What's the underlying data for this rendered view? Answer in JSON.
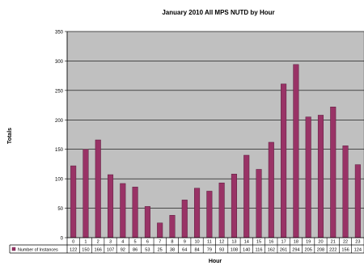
{
  "chart_data": {
    "type": "bar",
    "title": "January 2010 All MPS NUTD by Hour",
    "xlabel": "Hour",
    "ylabel": "Totals",
    "ylim": [
      0,
      350
    ],
    "yticks": [
      0,
      50,
      100,
      150,
      200,
      250,
      300,
      350
    ],
    "grid": true,
    "legend_position": "bottom-table",
    "categories": [
      "0",
      "1",
      "2",
      "3",
      "4",
      "5",
      "6",
      "7",
      "8",
      "9",
      "10",
      "11",
      "12",
      "13",
      "14",
      "15",
      "16",
      "17",
      "18",
      "19",
      "20",
      "21",
      "22",
      "23"
    ],
    "series": [
      {
        "name": "Number of Instances",
        "color": "#993366",
        "values": [
          122,
          150,
          166,
          107,
          92,
          86,
          53,
          25,
          38,
          64,
          84,
          79,
          93,
          108,
          140,
          116,
          162,
          261,
          294,
          205,
          208,
          222,
          156,
          124
        ]
      }
    ],
    "plot_background": "#c0c0c0"
  }
}
